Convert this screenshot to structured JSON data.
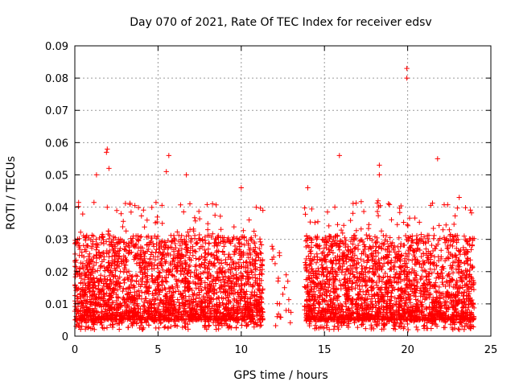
{
  "chart_data": {
    "type": "scatter",
    "title": "Day 070 of 2021, Rate Of TEC Index for receiver edsv",
    "xlabel": "GPS time / hours",
    "ylabel": "ROTI / TECUs",
    "xlim": [
      0,
      25
    ],
    "ylim": [
      0,
      0.09
    ],
    "xticks": [
      0,
      5,
      10,
      15,
      20,
      25
    ],
    "xtick_labels": [
      "0",
      "5",
      "10",
      "15",
      "20",
      "25"
    ],
    "yticks": [
      0,
      0.01,
      0.02,
      0.03,
      0.04,
      0.05,
      0.06,
      0.07,
      0.08,
      0.09
    ],
    "ytick_labels": [
      "0",
      "0.01",
      "0.02",
      "0.03",
      "0.04",
      "0.05",
      "0.06",
      "0.07",
      "0.08",
      "0.09"
    ],
    "grid": true,
    "marker": "+",
    "color": "#ff0000",
    "series": [
      {
        "name": "ROTI",
        "segments": [
          [
            0,
            11.3
          ],
          [
            11.8,
            13.0
          ],
          [
            13.8,
            24.0
          ]
        ],
        "typical_range": [
          0.005,
          0.03
        ],
        "notable_points": [
          {
            "x": 1.95,
            "y": 0.058
          },
          {
            "x": 1.9,
            "y": 0.057
          },
          {
            "x": 2.05,
            "y": 0.052
          },
          {
            "x": 1.3,
            "y": 0.05
          },
          {
            "x": 5.65,
            "y": 0.056
          },
          {
            "x": 5.5,
            "y": 0.051
          },
          {
            "x": 6.7,
            "y": 0.05
          },
          {
            "x": 10.0,
            "y": 0.046
          },
          {
            "x": 11.3,
            "y": 0.039
          },
          {
            "x": 14.0,
            "y": 0.046
          },
          {
            "x": 15.9,
            "y": 0.056
          },
          {
            "x": 18.3,
            "y": 0.053
          },
          {
            "x": 18.3,
            "y": 0.05
          },
          {
            "x": 19.95,
            "y": 0.083
          },
          {
            "x": 19.95,
            "y": 0.08
          },
          {
            "x": 21.8,
            "y": 0.055
          },
          {
            "x": 23.1,
            "y": 0.043
          },
          {
            "x": 12.7,
            "y": 0.019
          },
          {
            "x": 12.8,
            "y": 0.017
          },
          {
            "x": 12.5,
            "y": 0.013
          },
          {
            "x": 12.3,
            "y": 0.01
          },
          {
            "x": 12.85,
            "y": 0.008
          },
          {
            "x": 11.9,
            "y": 0.027
          },
          {
            "x": 12.3,
            "y": 0.025
          }
        ]
      }
    ]
  }
}
